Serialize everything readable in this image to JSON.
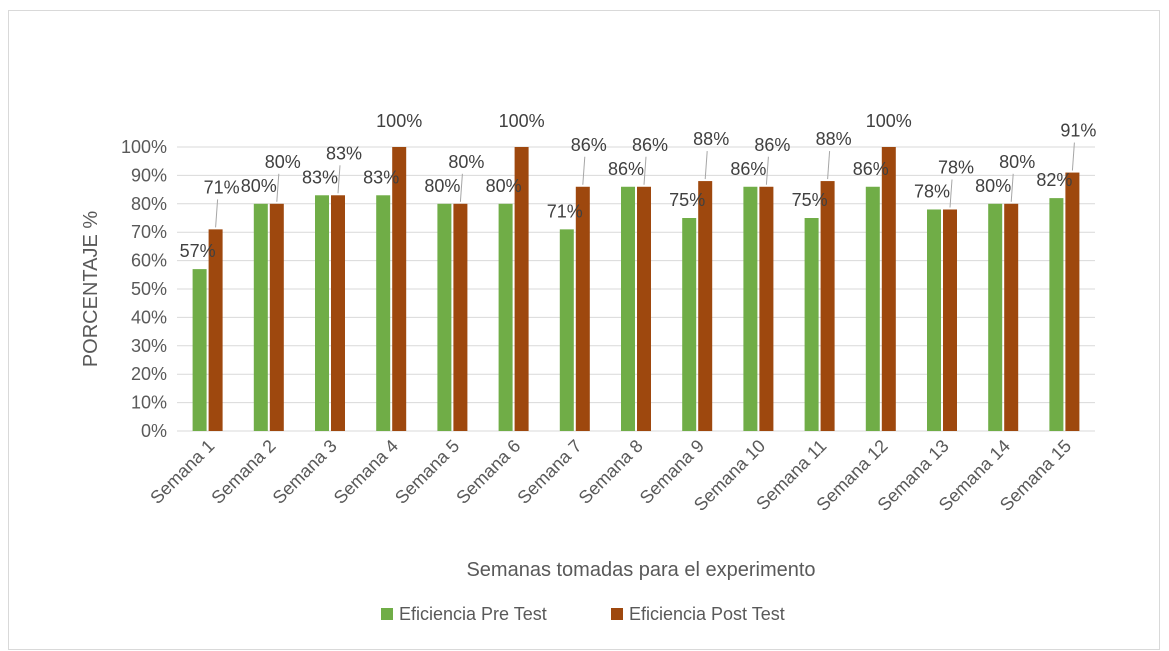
{
  "chart_data": {
    "type": "bar",
    "title": "",
    "xlabel": "Semanas tomadas para el experimento",
    "ylabel": "PORCENTAJE %",
    "ylim": [
      0,
      100
    ],
    "y_ticks": [
      "0%",
      "10%",
      "20%",
      "30%",
      "40%",
      "50%",
      "60%",
      "70%",
      "80%",
      "90%",
      "100%"
    ],
    "grid": true,
    "legend_position": "bottom",
    "categories": [
      "Semana 1",
      "Semana 2",
      "Semana 3",
      "Semana 4",
      "Semana 5",
      "Semana 6",
      "Semana 7",
      "Semana 8",
      "Semana 9",
      "Semana 10",
      "Semana 11",
      "Semana 12",
      "Semana 13",
      "Semana 14",
      "Semana 15"
    ],
    "series": [
      {
        "name": "Eficiencia Pre Test",
        "color": "#70ad47",
        "values": [
          57,
          80,
          83,
          83,
          80,
          80,
          71,
          86,
          75,
          86,
          75,
          86,
          78,
          80,
          82
        ],
        "labels": [
          "57%",
          "80%",
          "83%",
          "83%",
          "80%",
          "80%",
          "71%",
          "86%",
          "75%",
          "86%",
          "75%",
          "86%",
          "78%",
          "80%",
          "82%"
        ]
      },
      {
        "name": "Eficiencia Post Test",
        "color": "#9e480e",
        "values": [
          71,
          80,
          83,
          100,
          80,
          100,
          86,
          86,
          88,
          86,
          88,
          100,
          78,
          80,
          91
        ],
        "labels": [
          "71%",
          "80%",
          "83%",
          "100%",
          "80%",
          "100%",
          "86%",
          "86%",
          "88%",
          "86%",
          "88%",
          "100%",
          "78%",
          "80%",
          "91%"
        ]
      }
    ]
  }
}
